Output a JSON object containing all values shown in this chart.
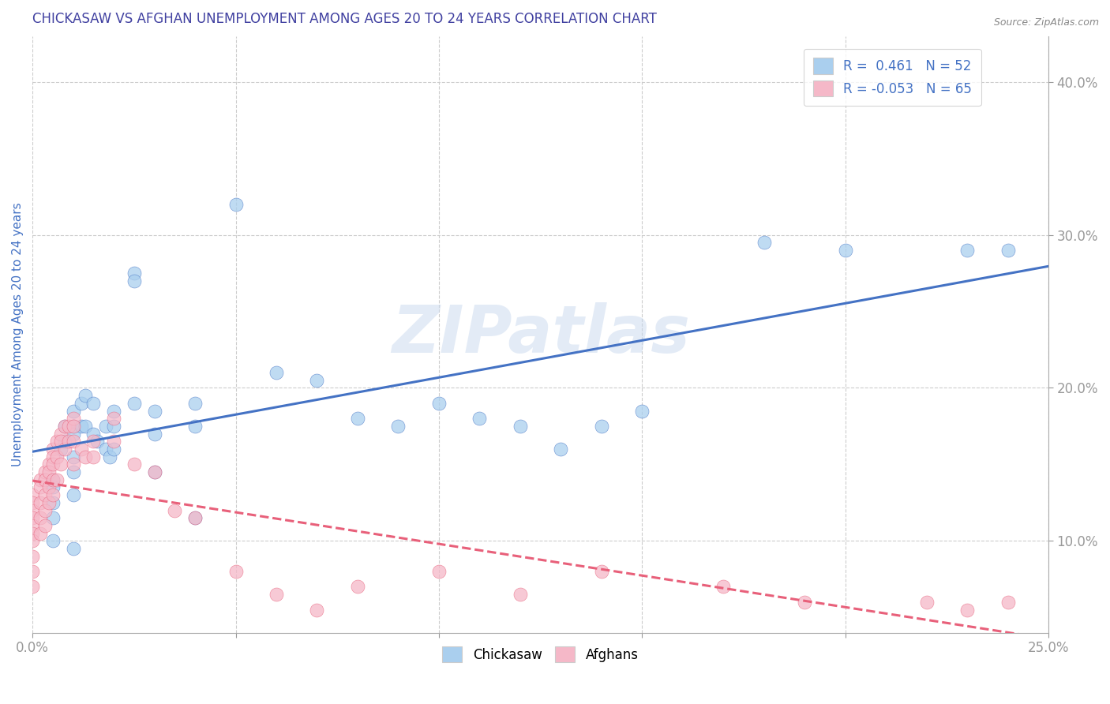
{
  "title": "CHICKASAW VS AFGHAN UNEMPLOYMENT AMONG AGES 20 TO 24 YEARS CORRELATION CHART",
  "source": "Source: ZipAtlas.com",
  "ylabel": "Unemployment Among Ages 20 to 24 years",
  "xlim": [
    0.0,
    0.25
  ],
  "ylim": [
    0.04,
    0.43
  ],
  "xticks": [
    0.0,
    0.05,
    0.1,
    0.15,
    0.2,
    0.25
  ],
  "xtick_labels": [
    "0.0%",
    "",
    "",
    "",
    "",
    "25.0%"
  ],
  "yticks": [
    0.1,
    0.2,
    0.3,
    0.4
  ],
  "ytick_labels": [
    "10.0%",
    "20.0%",
    "30.0%",
    "40.0%"
  ],
  "chickasaw_R": 0.461,
  "chickasaw_N": 52,
  "afghan_R": -0.053,
  "afghan_N": 65,
  "chickasaw_color": "#aacfee",
  "afghan_color": "#f5b8c8",
  "chickasaw_line_color": "#4472c4",
  "afghan_line_color": "#e8607a",
  "watermark": "ZIPatlas",
  "title_color": "#4040a0",
  "label_color": "#4472c4",
  "chickasaw_x": [
    0.005,
    0.005,
    0.005,
    0.005,
    0.005,
    0.007,
    0.008,
    0.008,
    0.01,
    0.01,
    0.01,
    0.01,
    0.01,
    0.01,
    0.01,
    0.012,
    0.012,
    0.013,
    0.013,
    0.015,
    0.015,
    0.016,
    0.018,
    0.018,
    0.019,
    0.02,
    0.02,
    0.02,
    0.025,
    0.025,
    0.025,
    0.03,
    0.03,
    0.03,
    0.04,
    0.04,
    0.04,
    0.05,
    0.06,
    0.07,
    0.08,
    0.09,
    0.1,
    0.11,
    0.12,
    0.13,
    0.14,
    0.15,
    0.18,
    0.2,
    0.23,
    0.24
  ],
  "chickasaw_y": [
    0.14,
    0.135,
    0.125,
    0.115,
    0.1,
    0.16,
    0.175,
    0.165,
    0.185,
    0.175,
    0.17,
    0.155,
    0.145,
    0.13,
    0.095,
    0.19,
    0.175,
    0.195,
    0.175,
    0.19,
    0.17,
    0.165,
    0.175,
    0.16,
    0.155,
    0.185,
    0.175,
    0.16,
    0.275,
    0.27,
    0.19,
    0.185,
    0.17,
    0.145,
    0.19,
    0.175,
    0.115,
    0.32,
    0.21,
    0.205,
    0.18,
    0.175,
    0.19,
    0.18,
    0.175,
    0.16,
    0.175,
    0.185,
    0.295,
    0.29,
    0.29,
    0.29
  ],
  "afghan_x": [
    0.0,
    0.0,
    0.0,
    0.0,
    0.0,
    0.0,
    0.0,
    0.0,
    0.0,
    0.0,
    0.002,
    0.002,
    0.002,
    0.002,
    0.002,
    0.003,
    0.003,
    0.003,
    0.003,
    0.003,
    0.004,
    0.004,
    0.004,
    0.004,
    0.005,
    0.005,
    0.005,
    0.005,
    0.005,
    0.006,
    0.006,
    0.006,
    0.007,
    0.007,
    0.007,
    0.008,
    0.008,
    0.009,
    0.009,
    0.01,
    0.01,
    0.01,
    0.01,
    0.012,
    0.013,
    0.015,
    0.015,
    0.02,
    0.02,
    0.025,
    0.03,
    0.035,
    0.04,
    0.05,
    0.06,
    0.07,
    0.08,
    0.1,
    0.12,
    0.14,
    0.17,
    0.19,
    0.22,
    0.23,
    0.24
  ],
  "afghan_y": [
    0.13,
    0.125,
    0.12,
    0.115,
    0.11,
    0.105,
    0.1,
    0.09,
    0.08,
    0.07,
    0.14,
    0.135,
    0.125,
    0.115,
    0.105,
    0.145,
    0.14,
    0.13,
    0.12,
    0.11,
    0.15,
    0.145,
    0.135,
    0.125,
    0.16,
    0.155,
    0.15,
    0.14,
    0.13,
    0.165,
    0.155,
    0.14,
    0.17,
    0.165,
    0.15,
    0.175,
    0.16,
    0.175,
    0.165,
    0.18,
    0.175,
    0.165,
    0.15,
    0.16,
    0.155,
    0.165,
    0.155,
    0.18,
    0.165,
    0.15,
    0.145,
    0.12,
    0.115,
    0.08,
    0.065,
    0.055,
    0.07,
    0.08,
    0.065,
    0.08,
    0.07,
    0.06,
    0.06,
    0.055,
    0.06
  ],
  "legend1_label": "R =  0.461   N = 52",
  "legend2_label": "R = -0.053   N = 65",
  "bottom_legend1": "Chickasaw",
  "bottom_legend2": "Afghans"
}
